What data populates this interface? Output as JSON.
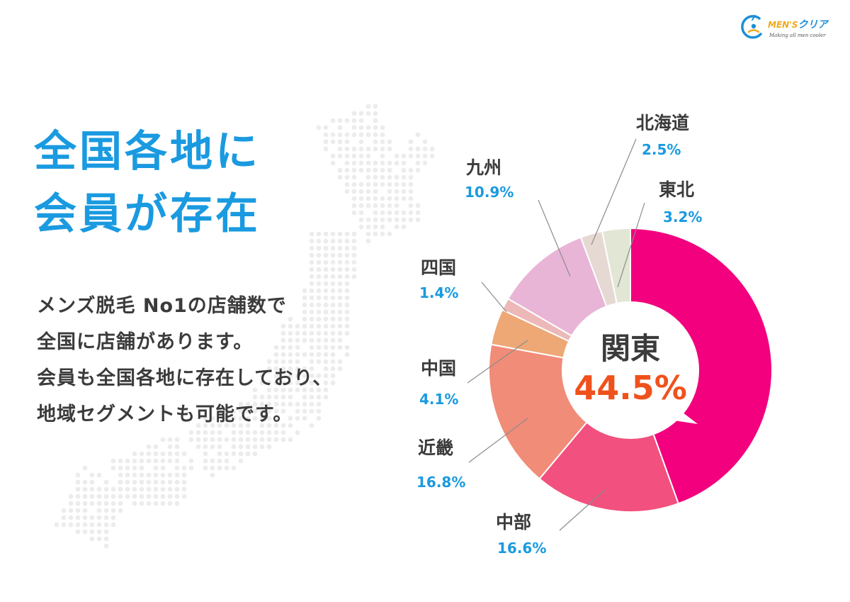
{
  "logo": {
    "brand_en": "MEN'S",
    "brand_jp": "クリア",
    "tagline": "Making all men cooler"
  },
  "headline": [
    "全国各地に",
    "会員が存在"
  ],
  "body_lines": [
    "メンズ脱毛 No1の店舗数で",
    "全国に店舗があります。",
    "会員も全国各地に存在しており、",
    "地域セグメントも可能です。"
  ],
  "colors": {
    "accent": "#1a9ae0",
    "highlight": "#f0511c",
    "text": "#3b3b3b"
  },
  "chart_data": {
    "type": "pie",
    "style": "donut",
    "start": "top, clockwise",
    "center_label": {
      "name": "関東",
      "value": "44.5%"
    },
    "slices": [
      {
        "name": "関東",
        "value": 44.5,
        "label": "44.5%",
        "color": "#f2007e"
      },
      {
        "name": "中部",
        "value": 16.6,
        "label": "16.6%",
        "color": "#f2507e"
      },
      {
        "name": "近畿",
        "value": 16.8,
        "label": "16.8%",
        "color": "#f08c78"
      },
      {
        "name": "中国",
        "value": 4.1,
        "label": "4.1%",
        "color": "#eda875"
      },
      {
        "name": "四国",
        "value": 1.4,
        "label": "1.4%",
        "color": "#ecb8b8"
      },
      {
        "name": "九州",
        "value": 10.9,
        "label": "10.9%",
        "color": "#e9b5d6"
      },
      {
        "name": "北海道",
        "value": 2.5,
        "label": "2.5%",
        "color": "#e6d9d4"
      },
      {
        "name": "東北",
        "value": 3.2,
        "label": "3.2%",
        "color": "#e2e6d4"
      }
    ]
  }
}
